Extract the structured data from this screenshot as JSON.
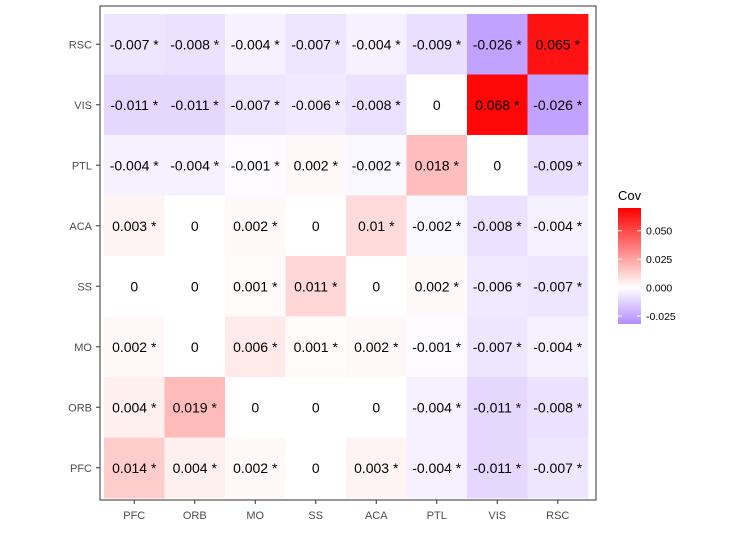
{
  "chart_data": {
    "type": "heatmap",
    "title": "",
    "xlabel": "",
    "ylabel": "",
    "x_categories": [
      "PFC",
      "ORB",
      "MO",
      "SS",
      "ACA",
      "PTL",
      "VIS",
      "RSC"
    ],
    "y_categories": [
      "RSC",
      "VIS",
      "PTL",
      "ACA",
      "SS",
      "MO",
      "ORB",
      "PFC"
    ],
    "values": [
      [
        -0.007,
        -0.008,
        -0.004,
        -0.007,
        -0.004,
        -0.009,
        -0.026,
        0.065
      ],
      [
        -0.011,
        -0.011,
        -0.007,
        -0.006,
        -0.008,
        0,
        0.068,
        -0.026
      ],
      [
        -0.004,
        -0.004,
        -0.001,
        0.002,
        -0.002,
        0.018,
        0,
        -0.009
      ],
      [
        0.003,
        0,
        0.002,
        0,
        0.01,
        -0.002,
        -0.008,
        -0.004
      ],
      [
        0,
        0,
        0.001,
        0.011,
        0,
        0.002,
        -0.006,
        -0.007
      ],
      [
        0.002,
        0,
        0.006,
        0.001,
        0.002,
        -0.001,
        -0.007,
        -0.004
      ],
      [
        0.004,
        0.019,
        0,
        0,
        0,
        -0.004,
        -0.011,
        -0.008
      ],
      [
        0.014,
        0.004,
        0.002,
        0,
        0.003,
        -0.004,
        -0.011,
        -0.007
      ]
    ],
    "labels": [
      [
        "-0.007 *",
        "-0.008 *",
        "-0.004 *",
        "-0.007 *",
        "-0.004 *",
        "-0.009 *",
        "-0.026 *",
        "0.065 *"
      ],
      [
        "-0.011 *",
        "-0.011 *",
        "-0.007 *",
        "-0.006 *",
        "-0.008 *",
        "0",
        "0.068 *",
        "-0.026 *"
      ],
      [
        "-0.004 *",
        "-0.004 *",
        "-0.001 *",
        "0.002 *",
        "-0.002 *",
        "0.018 *",
        "0",
        "-0.009 *"
      ],
      [
        "0.003 *",
        "0",
        "0.002 *",
        "0",
        "0.01 *",
        "-0.002 *",
        "-0.008 *",
        "-0.004 *"
      ],
      [
        "0",
        "0",
        "0.001 *",
        "0.011 *",
        "0",
        "0.002 *",
        "-0.006 *",
        "-0.007 *"
      ],
      [
        "0.002 *",
        "0",
        "0.006 *",
        "0.001 *",
        "0.002 *",
        "-0.001 *",
        "-0.007 *",
        "-0.004 *"
      ],
      [
        "0.004 *",
        "0.019 *",
        "0",
        "0",
        "0",
        "-0.004 *",
        "-0.011 *",
        "-0.008 *"
      ],
      [
        "0.014 *",
        "0.004 *",
        "0.002 *",
        "0",
        "0.003 *",
        "-0.004 *",
        "-0.011 *",
        "-0.007 *"
      ]
    ],
    "legend": {
      "title": "Cov",
      "placement": "right",
      "ticks": [
        0.05,
        0.025,
        0,
        -0.025
      ],
      "tick_labels": [
        "0.050",
        "0.025",
        "0.000",
        "-0.025"
      ],
      "range": [
        -0.032,
        0.07
      ]
    },
    "colors": {
      "low": "#b38cff",
      "mid": "#ffffff",
      "high": "#ff0000"
    },
    "grid": false
  }
}
